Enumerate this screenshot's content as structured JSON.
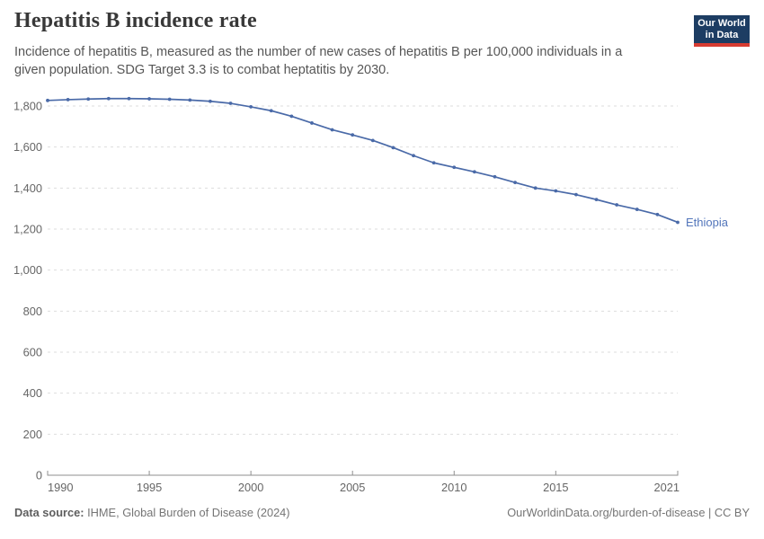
{
  "header": {
    "title": "Hepatitis B incidence rate",
    "subtitle_lines": [
      "Incidence of hepatitis B, measured as the number of new cases of hepatitis B per 100,000 individuals in a",
      "given population. SDG Target 3.3 is to combat heptatitis by 2030."
    ],
    "logo": {
      "line1": "Our World",
      "line2": "in Data",
      "bg_color": "#1d3d63",
      "accent_color": "#d73c32"
    }
  },
  "chart_data": {
    "type": "line",
    "title": "Hepatitis B incidence rate",
    "xlabel": "",
    "ylabel": "",
    "xlim": [
      1990,
      2021
    ],
    "ylim": [
      0,
      1800
    ],
    "grid": "horizontal-dashed",
    "legend_position": "end-of-line-label",
    "x_ticks": [
      1990,
      1995,
      2000,
      2005,
      2010,
      2015,
      2021
    ],
    "y_ticks": [
      0,
      200,
      400,
      600,
      800,
      1000,
      1200,
      1400,
      1600,
      1800
    ],
    "series": [
      {
        "name": "Ethiopia",
        "color": "#4a6aa8",
        "label_color": "#5376bb",
        "x": [
          1990,
          1991,
          1992,
          1993,
          1994,
          1995,
          1996,
          1997,
          1998,
          1999,
          2000,
          2001,
          2002,
          2003,
          2004,
          2005,
          2006,
          2007,
          2008,
          2009,
          2010,
          2011,
          2012,
          2013,
          2014,
          2015,
          2016,
          2017,
          2018,
          2019,
          2020,
          2021
        ],
        "values": [
          1827,
          1831,
          1834,
          1836,
          1836,
          1835,
          1833,
          1829,
          1823,
          1813,
          1796,
          1777,
          1750,
          1717,
          1684,
          1659,
          1632,
          1597,
          1558,
          1523,
          1501,
          1479,
          1455,
          1427,
          1400,
          1386,
          1368,
          1344,
          1318,
          1296,
          1271,
          1233
        ]
      }
    ]
  },
  "footer": {
    "data_source_label": "Data source:",
    "data_source_value": " IHME, Global Burden of Disease (2024)",
    "link": "OurWorldinData.org/burden-of-disease",
    "separator": " | ",
    "license": "CC BY"
  }
}
